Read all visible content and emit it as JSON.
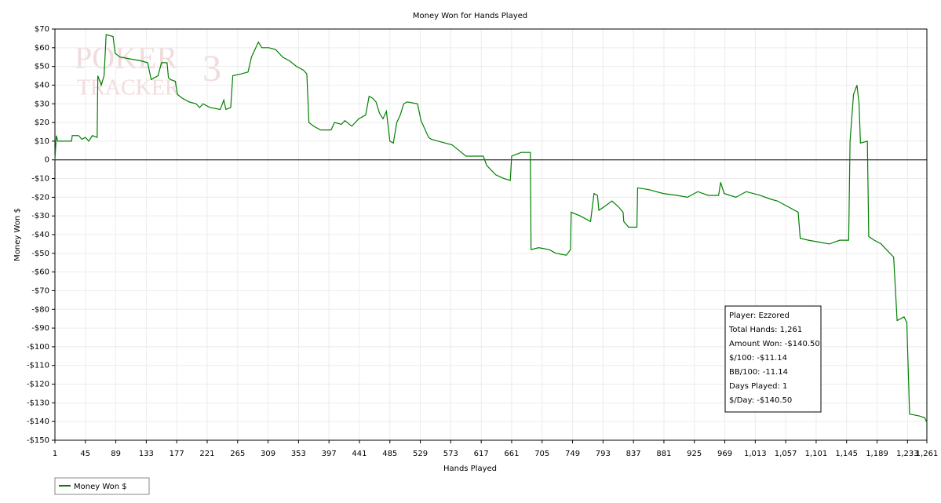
{
  "chart_data": {
    "type": "line",
    "title": "Money Won for Hands Played",
    "xlabel": "Hands Played",
    "ylabel": "Money Won $",
    "watermark": [
      "POKER",
      "TRACKER",
      "3"
    ],
    "xlim": [
      1,
      1261
    ],
    "ylim": [
      -150,
      70
    ],
    "xticks": [
      1,
      45,
      89,
      133,
      177,
      221,
      265,
      309,
      353,
      397,
      441,
      485,
      529,
      573,
      617,
      661,
      705,
      749,
      793,
      837,
      881,
      925,
      969,
      {
        "value": 1013,
        "label": "1,013"
      },
      {
        "value": 1057,
        "label": "1,057"
      },
      {
        "value": 1101,
        "label": "1,101"
      },
      {
        "value": 1145,
        "label": "1,145"
      },
      {
        "value": 1189,
        "label": "1,189"
      },
      {
        "value": 1233,
        "label": "1,233"
      },
      {
        "value": 1261,
        "label": "1,261"
      }
    ],
    "yticks": [
      {
        "value": 70,
        "label": "$70"
      },
      {
        "value": 60,
        "label": "$60"
      },
      {
        "value": 50,
        "label": "$50"
      },
      {
        "value": 40,
        "label": "$40"
      },
      {
        "value": 30,
        "label": "$30"
      },
      {
        "value": 20,
        "label": "$20"
      },
      {
        "value": 10,
        "label": "$10"
      },
      0,
      {
        "value": -10,
        "label": "-$10"
      },
      {
        "value": -20,
        "label": "-$20"
      },
      {
        "value": -30,
        "label": "-$30"
      },
      {
        "value": -40,
        "label": "-$40"
      },
      {
        "value": -50,
        "label": "-$50"
      },
      {
        "value": -60,
        "label": "-$60"
      },
      {
        "value": -70,
        "label": "-$70"
      },
      {
        "value": -80,
        "label": "-$80"
      },
      {
        "value": -90,
        "label": "-$90"
      },
      {
        "value": -100,
        "label": "-$100"
      },
      {
        "value": -110,
        "label": "-$110"
      },
      {
        "value": -120,
        "label": "-$120"
      },
      {
        "value": -130,
        "label": "-$130"
      },
      {
        "value": -140,
        "label": "-$140"
      },
      {
        "value": -150,
        "label": "-$150"
      }
    ],
    "grid": true,
    "legend": "bottom-left",
    "x": [
      1,
      3,
      5,
      25,
      26,
      35,
      40,
      45,
      50,
      55,
      62,
      63,
      68,
      72,
      75,
      85,
      88,
      95,
      110,
      125,
      135,
      140,
      150,
      155,
      163,
      165,
      168,
      175,
      178,
      185,
      195,
      205,
      210,
      215,
      225,
      240,
      245,
      248,
      255,
      258,
      270,
      280,
      285,
      295,
      300,
      310,
      320,
      330,
      340,
      350,
      360,
      365,
      368,
      375,
      385,
      400,
      405,
      415,
      420,
      430,
      440,
      450,
      455,
      460,
      465,
      470,
      475,
      480,
      485,
      490,
      495,
      500,
      505,
      510,
      525,
      530,
      541,
      545,
      555,
      565,
      575,
      585,
      595,
      620,
      625,
      638,
      650,
      659,
      661,
      668,
      675,
      688,
      689,
      700,
      715,
      725,
      740,
      746,
      747,
      760,
      775,
      780,
      785,
      787,
      795,
      806,
      815,
      822,
      823,
      830,
      842,
      843,
      860,
      880,
      900,
      915,
      930,
      945,
      960,
      963,
      968,
      985,
      1000,
      1010,
      1020,
      1035,
      1045,
      1060,
      1075,
      1078,
      1090,
      1105,
      1120,
      1135,
      1148,
      1150,
      1155,
      1160,
      1163,
      1165,
      1175,
      1177,
      1185,
      1195,
      1205,
      1213,
      1218,
      1228,
      1232,
      1236,
      1250,
      1258,
      1261
    ],
    "series": [
      {
        "name": "Money Won $",
        "color": "#008000",
        "values": [
          0,
          13,
          10,
          10,
          13,
          13,
          11,
          12,
          10,
          13,
          12,
          45,
          40,
          45,
          67,
          66,
          57,
          55,
          54,
          53,
          52,
          43,
          45,
          52,
          52,
          44,
          43,
          42,
          35,
          33,
          31,
          30,
          28,
          30,
          28,
          27,
          32,
          27,
          28,
          45,
          46,
          47,
          55,
          63,
          60,
          60,
          59,
          55,
          53,
          50,
          48,
          46,
          20,
          18,
          16,
          16,
          20,
          19,
          21,
          18,
          22,
          24,
          34,
          33,
          31,
          25,
          22,
          26,
          10,
          9,
          20,
          24,
          30,
          31,
          30,
          21,
          12,
          11,
          10,
          9,
          8,
          5,
          2,
          2,
          -3,
          -8,
          -10,
          -11,
          2,
          3,
          4,
          4,
          -48,
          -47,
          -48,
          -50,
          -51,
          -48,
          -28,
          -30,
          -33,
          -18,
          -19,
          -27,
          -25,
          -22,
          -25,
          -28,
          -33,
          -36,
          -36,
          -15,
          -16,
          -18,
          -19,
          -20,
          -17,
          -19,
          -19,
          -12,
          -18,
          -20,
          -17,
          -18,
          -19,
          -21,
          -22,
          -25,
          -28,
          -42,
          -43,
          -44,
          -45,
          -43,
          -43,
          10,
          35,
          40,
          30,
          9,
          10,
          -41,
          -43,
          -45,
          -49,
          -52,
          -86,
          -84,
          -87,
          -136,
          -137,
          -138,
          -140.5
        ]
      }
    ],
    "stats": [
      "Player: Ezzored",
      "Total Hands: 1,261",
      "Amount Won: -$140.50",
      "$/100: -$11.14",
      "BB/100: -11.14",
      "Days Played: 1",
      "$/Day: -$140.50"
    ]
  }
}
